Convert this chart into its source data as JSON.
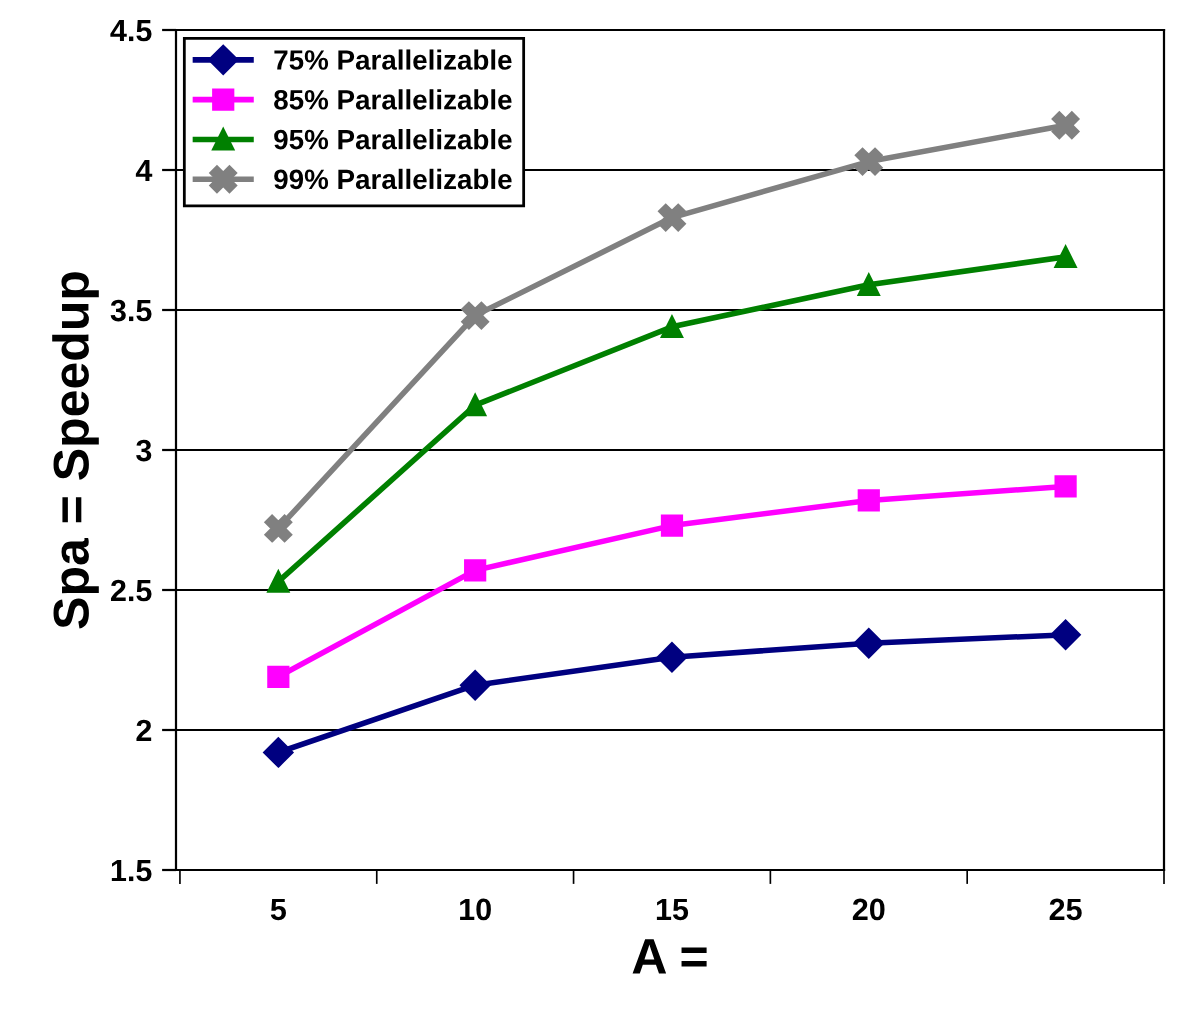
{
  "chart_data": {
    "type": "line",
    "xlabel": "A =",
    "ylabel": "Spa = Speedup",
    "categories": [
      "5",
      "10",
      "15",
      "20",
      "25"
    ],
    "series": [
      {
        "name": "75% Parallelizable",
        "color": "#000080",
        "marker": "diamond",
        "values": [
          1.92,
          2.16,
          2.26,
          2.31,
          2.34
        ]
      },
      {
        "name": "85% Parallelizable",
        "color": "#ff00ff",
        "marker": "square",
        "values": [
          2.19,
          2.57,
          2.73,
          2.82,
          2.87
        ]
      },
      {
        "name": "95% Parallelizable",
        "color": "#008000",
        "marker": "triangle",
        "values": [
          2.53,
          3.16,
          3.44,
          3.59,
          3.69
        ]
      },
      {
        "name": "99% Parallelizable",
        "color": "#808080",
        "marker": "cross",
        "values": [
          2.72,
          3.48,
          3.83,
          4.03,
          4.16
        ]
      }
    ],
    "ylim": [
      1.5,
      4.5
    ],
    "yticks": [
      1.5,
      2,
      2.5,
      3,
      3.5,
      4,
      4.5
    ],
    "grid": "y",
    "legend": "top left"
  }
}
